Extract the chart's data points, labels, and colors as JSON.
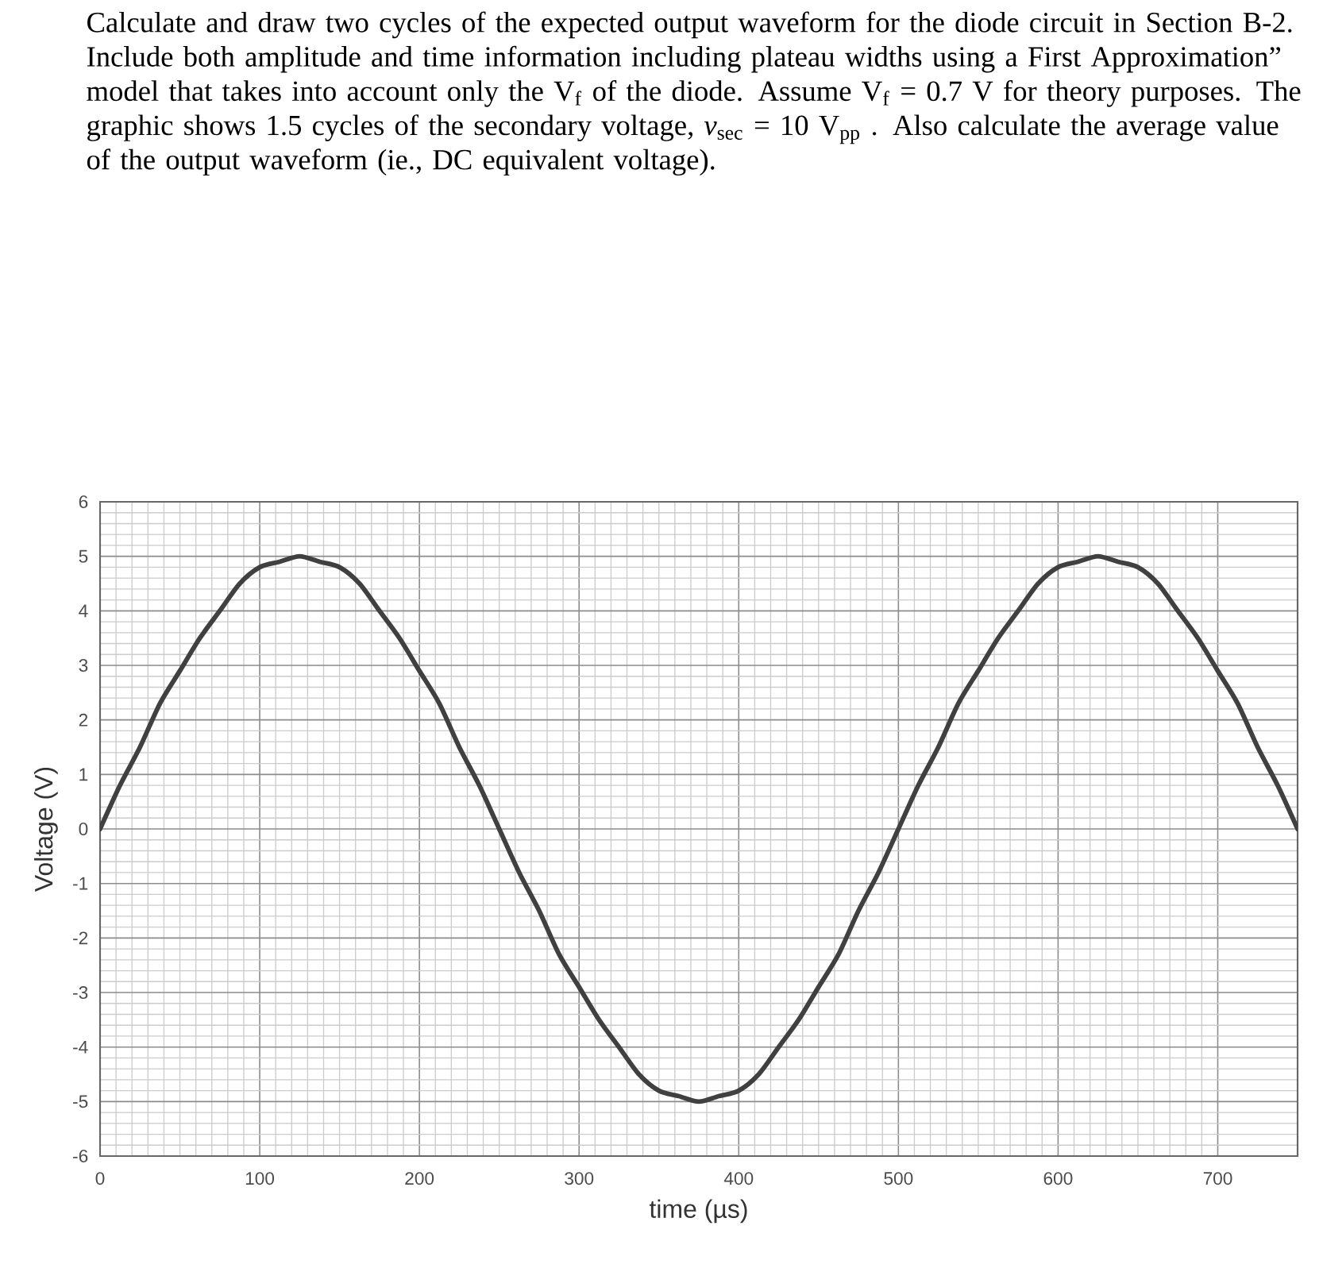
{
  "chart_data": {
    "type": "line",
    "title": "Calculate and draw two cycles of the expected output waveform for the diode circuit in Section B-2. Include both amplitude and time information including plateau widths using a First Approximation” model that takes into account only the V$_{f}$ of the diode.  Assume V$_{f}$ = 0.7 V for theory purposes. The graphic shows 1.5 cycles of the secondary voltage, *v*$_{sec}$ = 10 V$_{pp}$ .  Also calculate the average value of the output waveform (ie., DC equivalent voltage).",
    "xlabel": "time (µs)",
    "ylabel": "Voltage (V)",
    "x": [
      0,
      12.5,
      25,
      37.5,
      50,
      62.5,
      75,
      87.5,
      100,
      112.5,
      125,
      137.5,
      150,
      162.5,
      175,
      187.5,
      200,
      212.5,
      225,
      237.5,
      250,
      262.5,
      275,
      287.5,
      300,
      312.5,
      325,
      337.5,
      350,
      362.5,
      375,
      387.5,
      400,
      412.5,
      425,
      437.5,
      450,
      462.5,
      475,
      487.5,
      500,
      512.5,
      525,
      537.5,
      550,
      562.5,
      575,
      587.5,
      600,
      612.5,
      625,
      637.5,
      650,
      662.5,
      675,
      687.5,
      700,
      712.5,
      725,
      737.5,
      750
    ],
    "series": [
      {
        "color": "#404040",
        "line_style": "solid",
        "values": [
          0,
          0.8,
          1.5,
          2.3,
          2.9,
          3.5,
          4.0,
          4.5,
          4.8,
          4.9,
          5.0,
          4.9,
          4.8,
          4.5,
          4.0,
          3.5,
          2.9,
          2.3,
          1.5,
          0.8,
          0,
          -0.8,
          -1.5,
          -2.3,
          -2.9,
          -3.5,
          -4.0,
          -4.5,
          -4.8,
          -4.9,
          -5.0,
          -4.9,
          -4.8,
          -4.5,
          -4.0,
          -3.5,
          -2.9,
          -2.3,
          -1.5,
          -0.8,
          0,
          0.8,
          1.5,
          2.3,
          2.9,
          3.5,
          4.0,
          4.5,
          4.8,
          4.9,
          5.0,
          4.9,
          4.8,
          4.5,
          4.0,
          3.5,
          2.9,
          2.3,
          1.5,
          0.8,
          0
        ]
      }
    ],
    "xlim": [
      0,
      750
    ],
    "ylim": [
      -6,
      6
    ],
    "xticks": [
      0,
      100,
      200,
      300,
      400,
      500,
      600,
      700
    ],
    "yticks": [
      -6,
      -5,
      -4,
      -3,
      -2,
      -1,
      0,
      1,
      2,
      3,
      4,
      5,
      6
    ],
    "grid": true,
    "marker": "none"
  }
}
